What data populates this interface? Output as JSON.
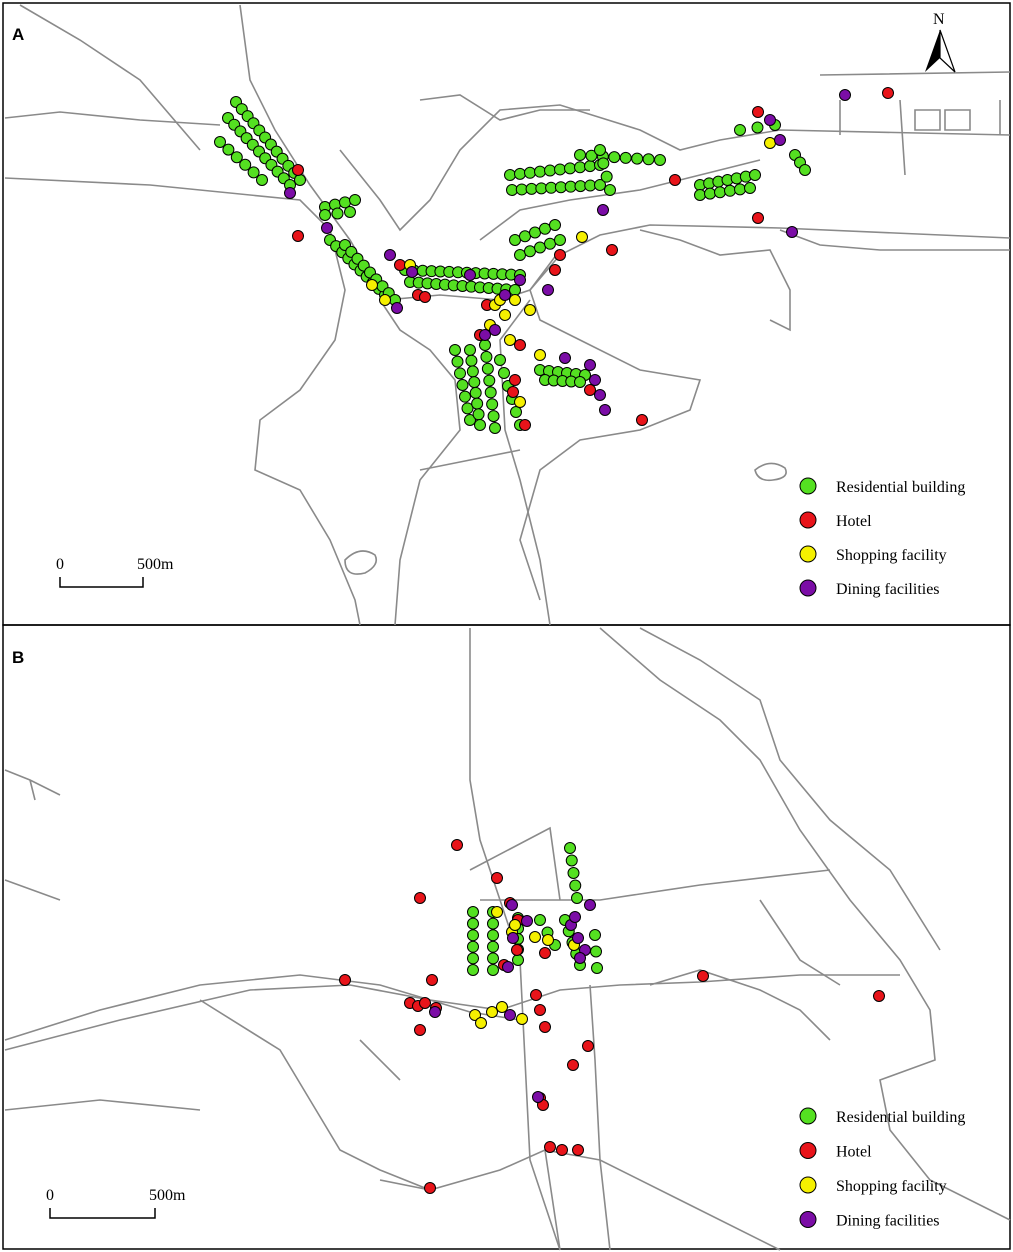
{
  "legend_colors": [
    "#54e021",
    "#e8141a",
    "#f5f000",
    "#7b0da6"
  ],
  "panels": [
    {
      "label": "A",
      "north": "N",
      "legend": [
        "Residential building",
        "Hotel",
        "Shopping facility",
        "Dining facilities"
      ],
      "scale": {
        "start": "0",
        "end": "500m"
      }
    },
    {
      "label": "B",
      "legend": [
        "Residential building",
        "Hotel",
        "Shopping facility",
        "Dining facilities"
      ],
      "scale": {
        "start": "0",
        "end": "500m"
      }
    }
  ]
}
